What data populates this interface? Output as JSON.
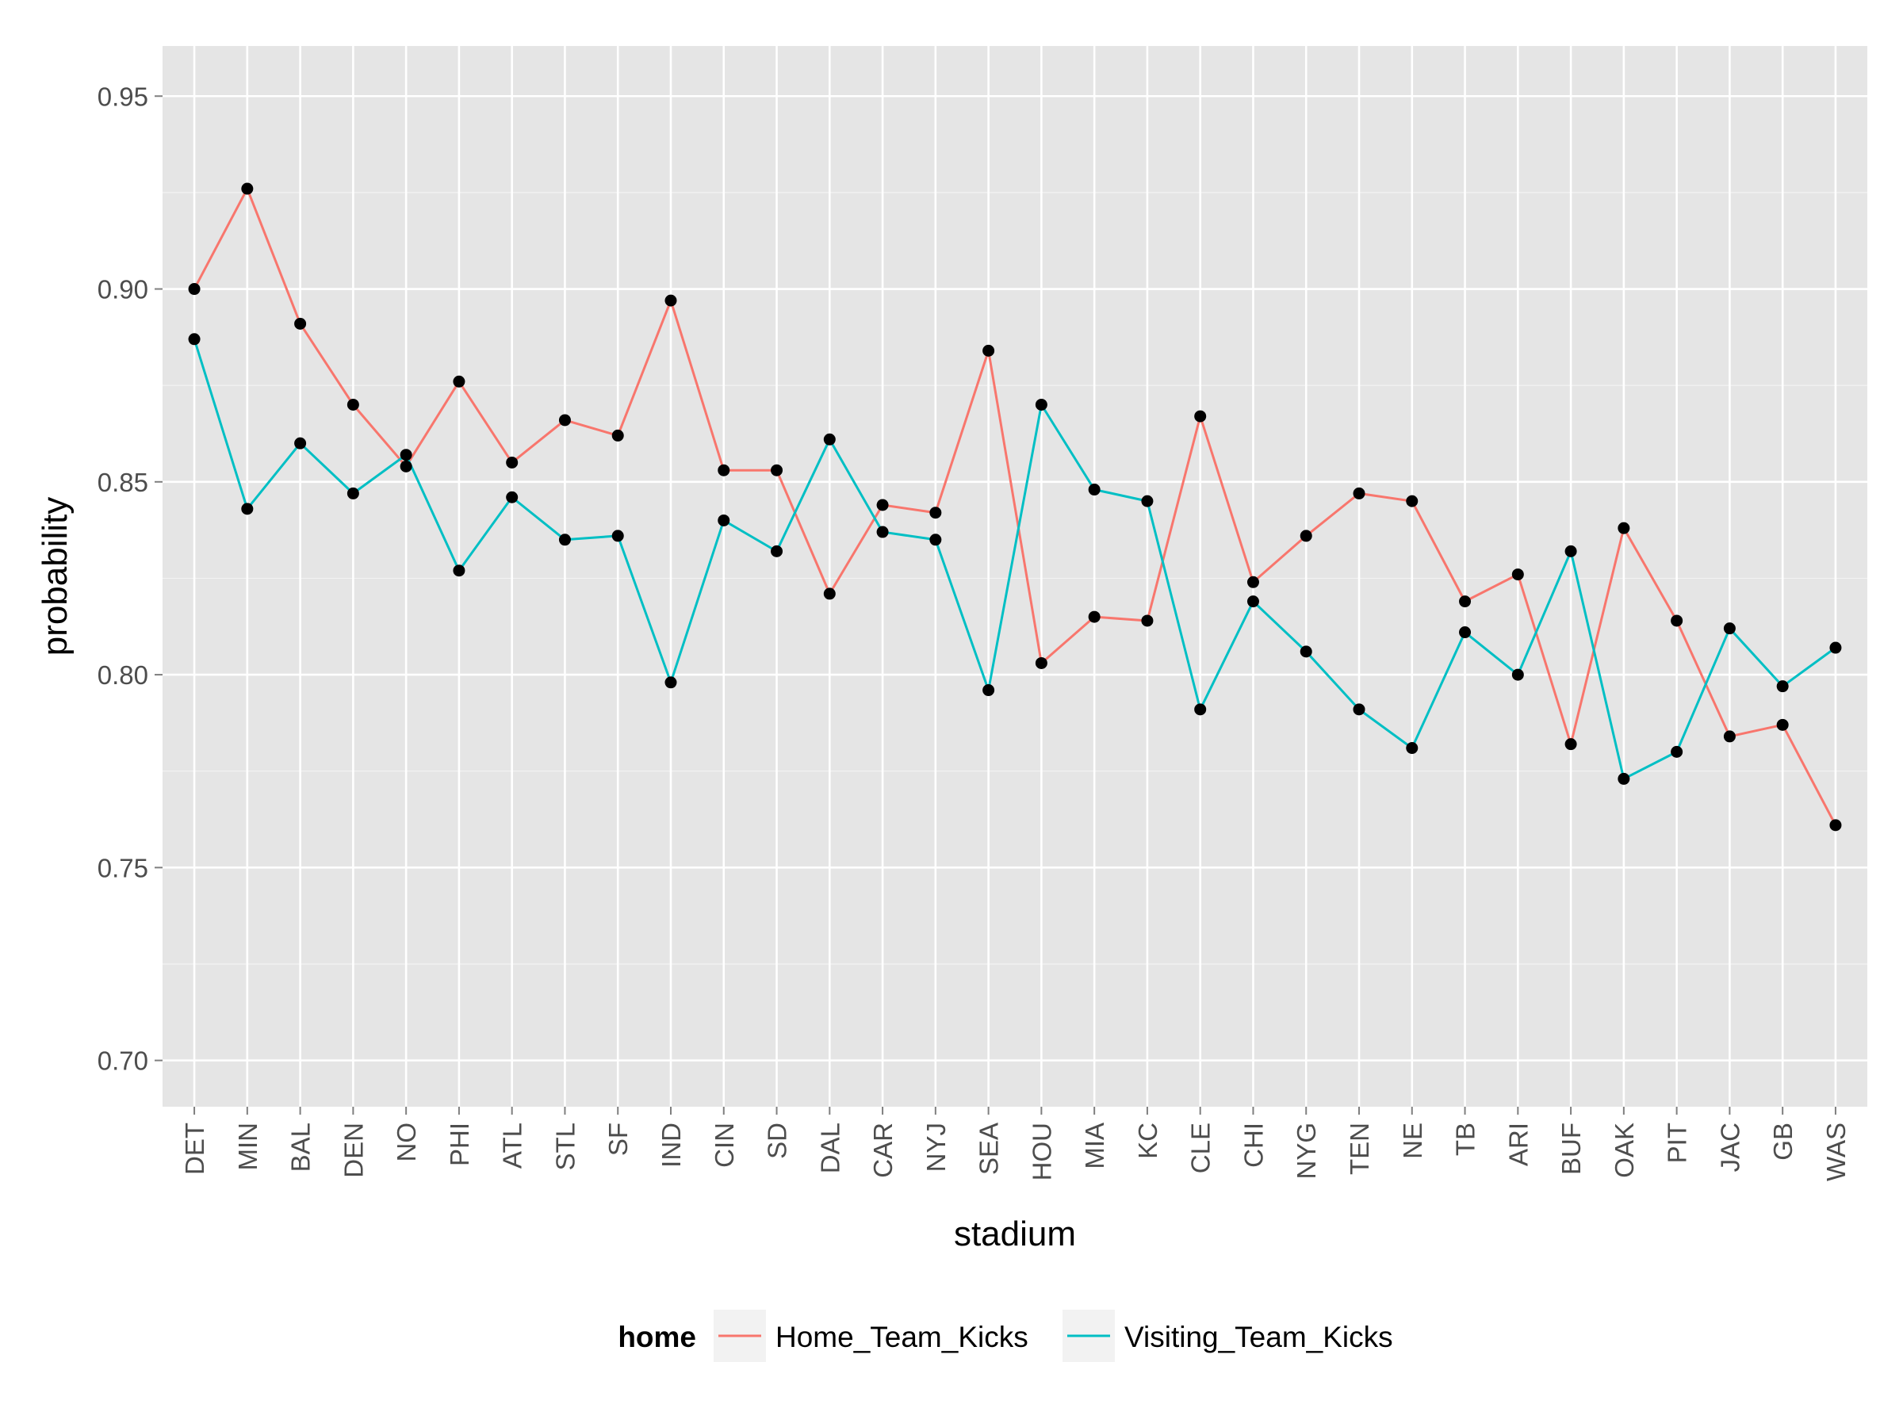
{
  "chart_data": {
    "type": "line",
    "xlabel": "stadium",
    "ylabel": "probability",
    "ylim": [
      0.688,
      0.963
    ],
    "y_ticks": [
      0.7,
      0.75,
      0.8,
      0.85,
      0.9,
      0.95
    ],
    "y_tick_labels": [
      "0.70",
      "0.75",
      "0.80",
      "0.85",
      "0.90",
      "0.95"
    ],
    "grid": true,
    "legend": {
      "position": "bottom",
      "title": "home"
    },
    "categories": [
      "DET",
      "MIN",
      "BAL",
      "DEN",
      "NO",
      "PHI",
      "ATL",
      "STL",
      "SF",
      "IND",
      "CIN",
      "SD",
      "DAL",
      "CAR",
      "NYJ",
      "SEA",
      "HOU",
      "MIA",
      "KC",
      "CLE",
      "CHI",
      "NYG",
      "TEN",
      "NE",
      "TB",
      "ARI",
      "BUF",
      "OAK",
      "PIT",
      "JAC",
      "GB",
      "WAS"
    ],
    "series": [
      {
        "name": "Home_Team_Kicks",
        "color": "#F8766D",
        "values": [
          0.9,
          0.926,
          0.891,
          0.87,
          0.854,
          0.876,
          0.855,
          0.866,
          0.862,
          0.897,
          0.853,
          0.853,
          0.821,
          0.844,
          0.842,
          0.884,
          0.803,
          0.815,
          0.814,
          0.867,
          0.824,
          0.836,
          0.847,
          0.845,
          0.819,
          0.826,
          0.782,
          0.838,
          0.814,
          0.784,
          0.787,
          0.761
        ]
      },
      {
        "name": "Visiting_Team_Kicks",
        "color": "#00BFC4",
        "values": [
          0.887,
          0.843,
          0.86,
          0.847,
          0.857,
          0.827,
          0.846,
          0.835,
          0.836,
          0.798,
          0.84,
          0.832,
          0.861,
          0.837,
          0.835,
          0.796,
          0.87,
          0.848,
          0.845,
          0.791,
          0.819,
          0.806,
          0.791,
          0.781,
          0.811,
          0.8,
          0.832,
          0.773,
          0.78,
          0.812,
          0.797,
          0.807
        ]
      }
    ],
    "point_color": "#000000",
    "panel_color": "#E5E5E5",
    "grid_color": "#FFFFFF"
  }
}
